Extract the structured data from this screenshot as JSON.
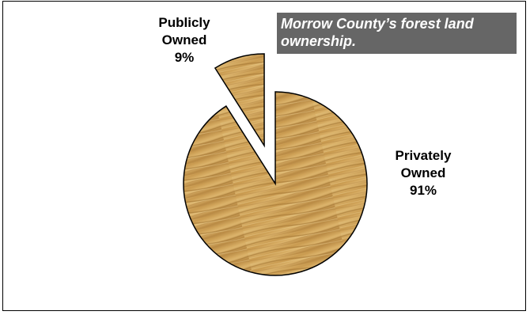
{
  "title": "Morrow County’s forest land ownership.",
  "chart_data": {
    "type": "pie",
    "title": "Morrow County’s forest land ownership.",
    "slices": [
      {
        "name": "Privately Owned",
        "value": 91,
        "label": "Privately\nOwned\n91%"
      },
      {
        "name": "Publicly Owned",
        "value": 9,
        "label": "Publicly\nOwned\n9%"
      }
    ],
    "exploded": "Publicly Owned",
    "legend": "none",
    "colors": {
      "wood_light": "#d9b36a",
      "wood_mid": "#c89a4e",
      "wood_dark": "#9c6e2e",
      "title_bg": "#666666",
      "title_fg": "#ffffff"
    }
  }
}
